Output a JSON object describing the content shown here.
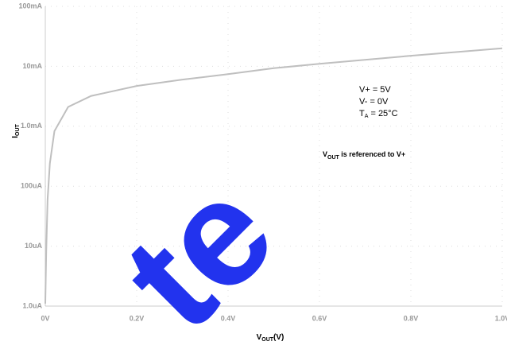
{
  "chart_data": {
    "type": "line",
    "x_label": {
      "main": "V",
      "sub": "OUT",
      "rest": "(V)"
    },
    "y_label": {
      "main": "I",
      "sub": "OUT"
    },
    "annotations": {
      "lines": [
        "V+ = 5V",
        "V- = 0V"
      ],
      "temperature": {
        "main": "T",
        "sub": "A",
        "rest": " = 25°C"
      },
      "note": {
        "main": "V",
        "sub": "OUT",
        "rest": " is referenced to V+"
      }
    },
    "watermark": "te",
    "x": [
      0,
      0.002,
      0.005,
      0.01,
      0.02,
      0.05,
      0.1,
      0.2,
      0.3,
      0.4,
      0.5,
      0.6,
      0.8,
      1.0
    ],
    "series": [
      {
        "color": "#bfbfbf",
        "values": [
          1.1e-06,
          8e-06,
          6e-05,
          0.00024,
          0.00083,
          0.0021,
          0.0032,
          0.0047,
          0.006,
          0.0074,
          0.0093,
          0.011,
          0.015,
          0.02
        ]
      }
    ],
    "xlim": [
      0,
      1.0
    ],
    "xticks": [
      {
        "value": 0,
        "label": "0V"
      },
      {
        "value": 0.2,
        "label": "0.2V"
      },
      {
        "value": 0.4,
        "label": "0.4V"
      },
      {
        "value": 0.6,
        "label": "0.6V"
      },
      {
        "value": 0.8,
        "label": "0.8V"
      },
      {
        "value": 1.0,
        "label": "1.0V"
      }
    ],
    "ylim": [
      1e-06,
      0.1
    ],
    "yticks": [
      {
        "value": 1e-06,
        "label": "1.0uA"
      },
      {
        "value": 1e-05,
        "label": "10uA"
      },
      {
        "value": 0.0001,
        "label": "100uA"
      },
      {
        "value": 0.001,
        "label": "1.0mA"
      },
      {
        "value": 0.01,
        "label": "10mA"
      },
      {
        "value": 0.1,
        "label": "100mA"
      }
    ],
    "log_y": true,
    "grid": true
  }
}
